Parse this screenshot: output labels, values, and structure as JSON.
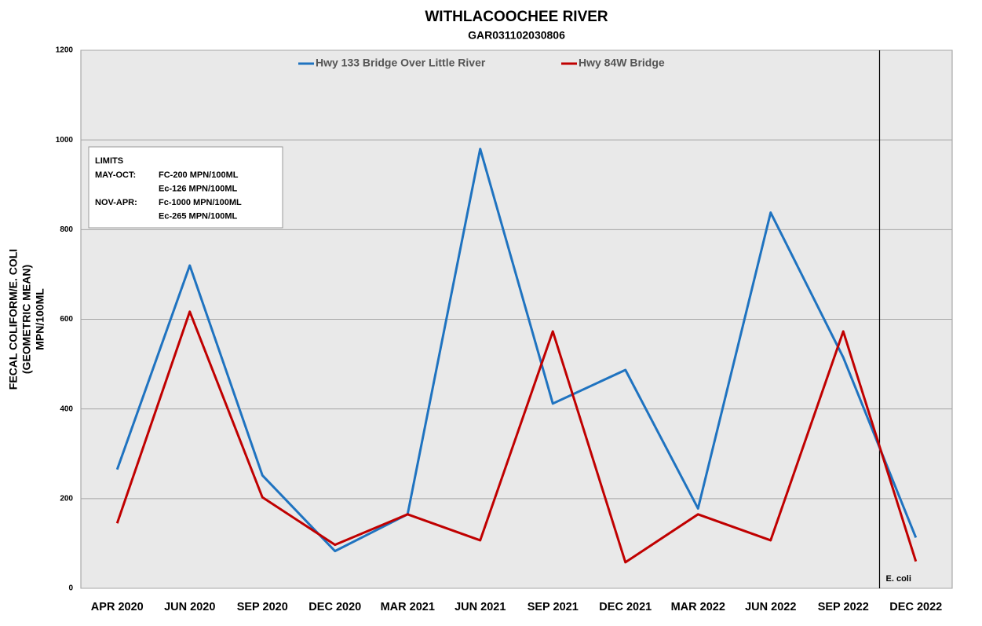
{
  "chart_data": {
    "type": "line",
    "title": "WITHLACOOCHEE RIVER",
    "subtitle": "GAR031102030806",
    "y_label": [
      "FECAL COLIFORM/E. COLI",
      "(GEOMETRIC MEAN)",
      "MPN/100ML"
    ],
    "categories": [
      "APR 2020",
      "JUN 2020",
      "SEP 2020",
      "DEC 2020",
      "MAR 2021",
      "JUN 2021",
      "SEP 2021",
      "DEC 2021",
      "MAR 2022",
      "JUN 2022",
      "SEP 2022",
      "DEC 2022"
    ],
    "series": [
      {
        "name": "Hwy 133 Bridge Over Little River",
        "color": "#1f73c0",
        "values": [
          265,
          720,
          252,
          83,
          165,
          980,
          412,
          487,
          178,
          838,
          515,
          113
        ]
      },
      {
        "name": "Hwy 84W Bridge",
        "color": "#c00000",
        "values": [
          145,
          617,
          203,
          97,
          165,
          107,
          573,
          58,
          165,
          107,
          573,
          60
        ]
      }
    ],
    "ylim": [
      0,
      1200
    ],
    "yticks": [
      0,
      200,
      400,
      600,
      800,
      1000,
      1200
    ],
    "grid": true,
    "legend": "top",
    "limits": {
      "title": "LIMITS",
      "lines": [
        {
          "label": "MAY-OCT:",
          "text": "FC-200 MPN/100ML"
        },
        {
          "text": "Ec-126 MPN/100ML"
        },
        {
          "label": "NOV-APR:",
          "text": "Fc-1000 MPN/100ML"
        },
        {
          "text": "Ec-265 MPN/100ML"
        }
      ]
    },
    "annotation": "E. coli"
  }
}
